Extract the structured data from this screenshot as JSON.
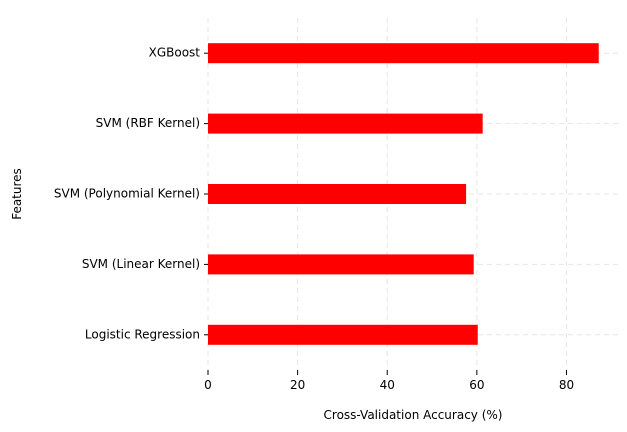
{
  "chart_data": {
    "type": "bar",
    "orientation": "horizontal",
    "categories": [
      "Logistic Regression",
      "SVM (Linear Kernel)",
      "SVM (Polynomial Kernel)",
      "SVM (RBF Kernel)",
      "XGBoost"
    ],
    "values": [
      60.2,
      59.3,
      57.6,
      61.3,
      87.2
    ],
    "xlabel": "Cross-Validation Accuracy (%)",
    "ylabel": "Features",
    "xlim": [
      0,
      91.5
    ],
    "xticks": [
      0,
      20,
      40,
      60,
      80
    ],
    "grid": true,
    "bar_color": "#ff0000",
    "grid_color": "#e6e6e6"
  }
}
